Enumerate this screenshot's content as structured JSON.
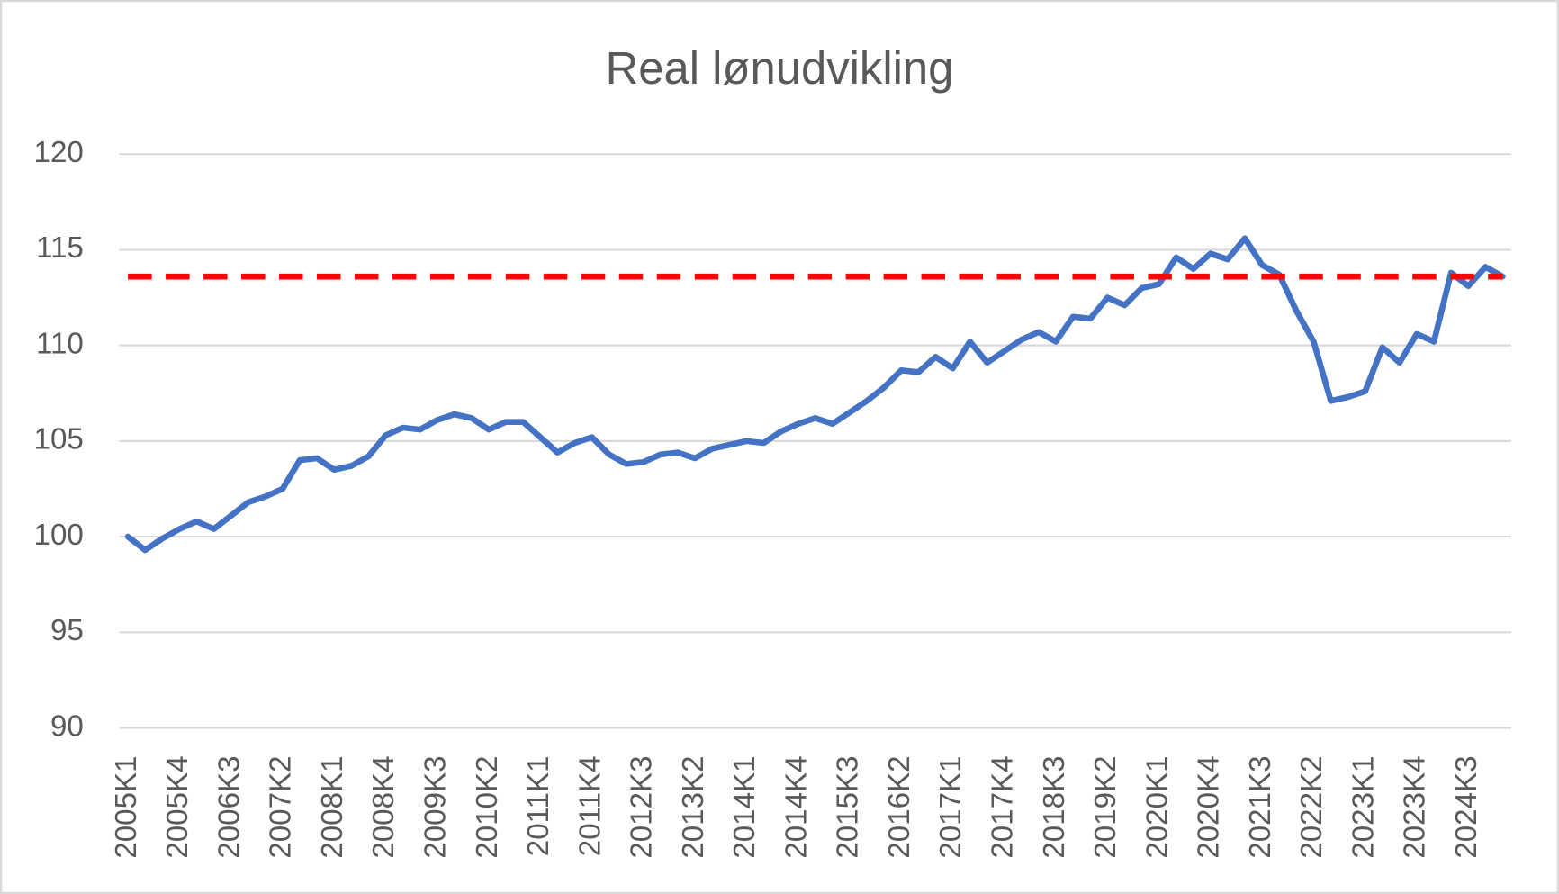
{
  "chart_data": {
    "type": "line",
    "title": "Real lønudvikling",
    "categories": [
      "2005K1",
      null,
      null,
      "2005K4",
      null,
      null,
      "2006K3",
      null,
      null,
      "2007K2",
      null,
      null,
      "2008K1",
      null,
      null,
      "2008K4",
      null,
      null,
      "2009K3",
      null,
      null,
      "2010K2",
      null,
      null,
      "2011K1",
      null,
      null,
      "2011K4",
      null,
      null,
      "2012K3",
      null,
      null,
      "2013K2",
      null,
      null,
      "2014K1",
      null,
      null,
      "2014K4",
      null,
      null,
      "2015K3",
      null,
      null,
      "2016K2",
      null,
      null,
      "2017K1",
      null,
      null,
      "2017K4",
      null,
      null,
      "2018K3",
      null,
      null,
      "2019K2",
      null,
      null,
      "2020K1",
      null,
      null,
      "2020K4",
      null,
      null,
      "2021K3",
      null,
      null,
      "2022K2",
      null,
      null,
      "2023K1",
      null,
      null,
      "2023K4",
      null,
      null,
      "2024K3",
      null,
      null
    ],
    "values": [
      100.0,
      99.3,
      99.9,
      100.4,
      100.8,
      100.4,
      101.1,
      101.8,
      102.1,
      102.5,
      104.0,
      104.1,
      103.5,
      103.7,
      104.2,
      105.3,
      105.7,
      105.6,
      106.1,
      106.4,
      106.2,
      105.6,
      106.0,
      106.0,
      105.2,
      104.4,
      104.9,
      105.2,
      104.3,
      103.8,
      103.9,
      104.3,
      104.4,
      104.1,
      104.6,
      104.8,
      105.0,
      104.9,
      105.5,
      105.9,
      106.2,
      105.9,
      106.5,
      107.1,
      107.8,
      108.7,
      108.6,
      109.4,
      108.8,
      110.2,
      109.1,
      109.7,
      110.3,
      110.7,
      110.2,
      111.5,
      111.4,
      112.5,
      112.1,
      113.0,
      113.2,
      114.6,
      114.0,
      114.8,
      114.5,
      115.6,
      114.2,
      113.7,
      111.8,
      110.2,
      107.1,
      107.3,
      107.6,
      109.9,
      109.1,
      110.6,
      110.2,
      113.8,
      113.1,
      114.1,
      113.6
    ],
    "color": "#4472c4",
    "reference_line": {
      "value": 113.6,
      "color": "#ff0000",
      "dashed": true
    },
    "ylim": [
      90,
      120
    ],
    "yticks": [
      90,
      95,
      100,
      105,
      110,
      115,
      120
    ],
    "grid": true
  }
}
